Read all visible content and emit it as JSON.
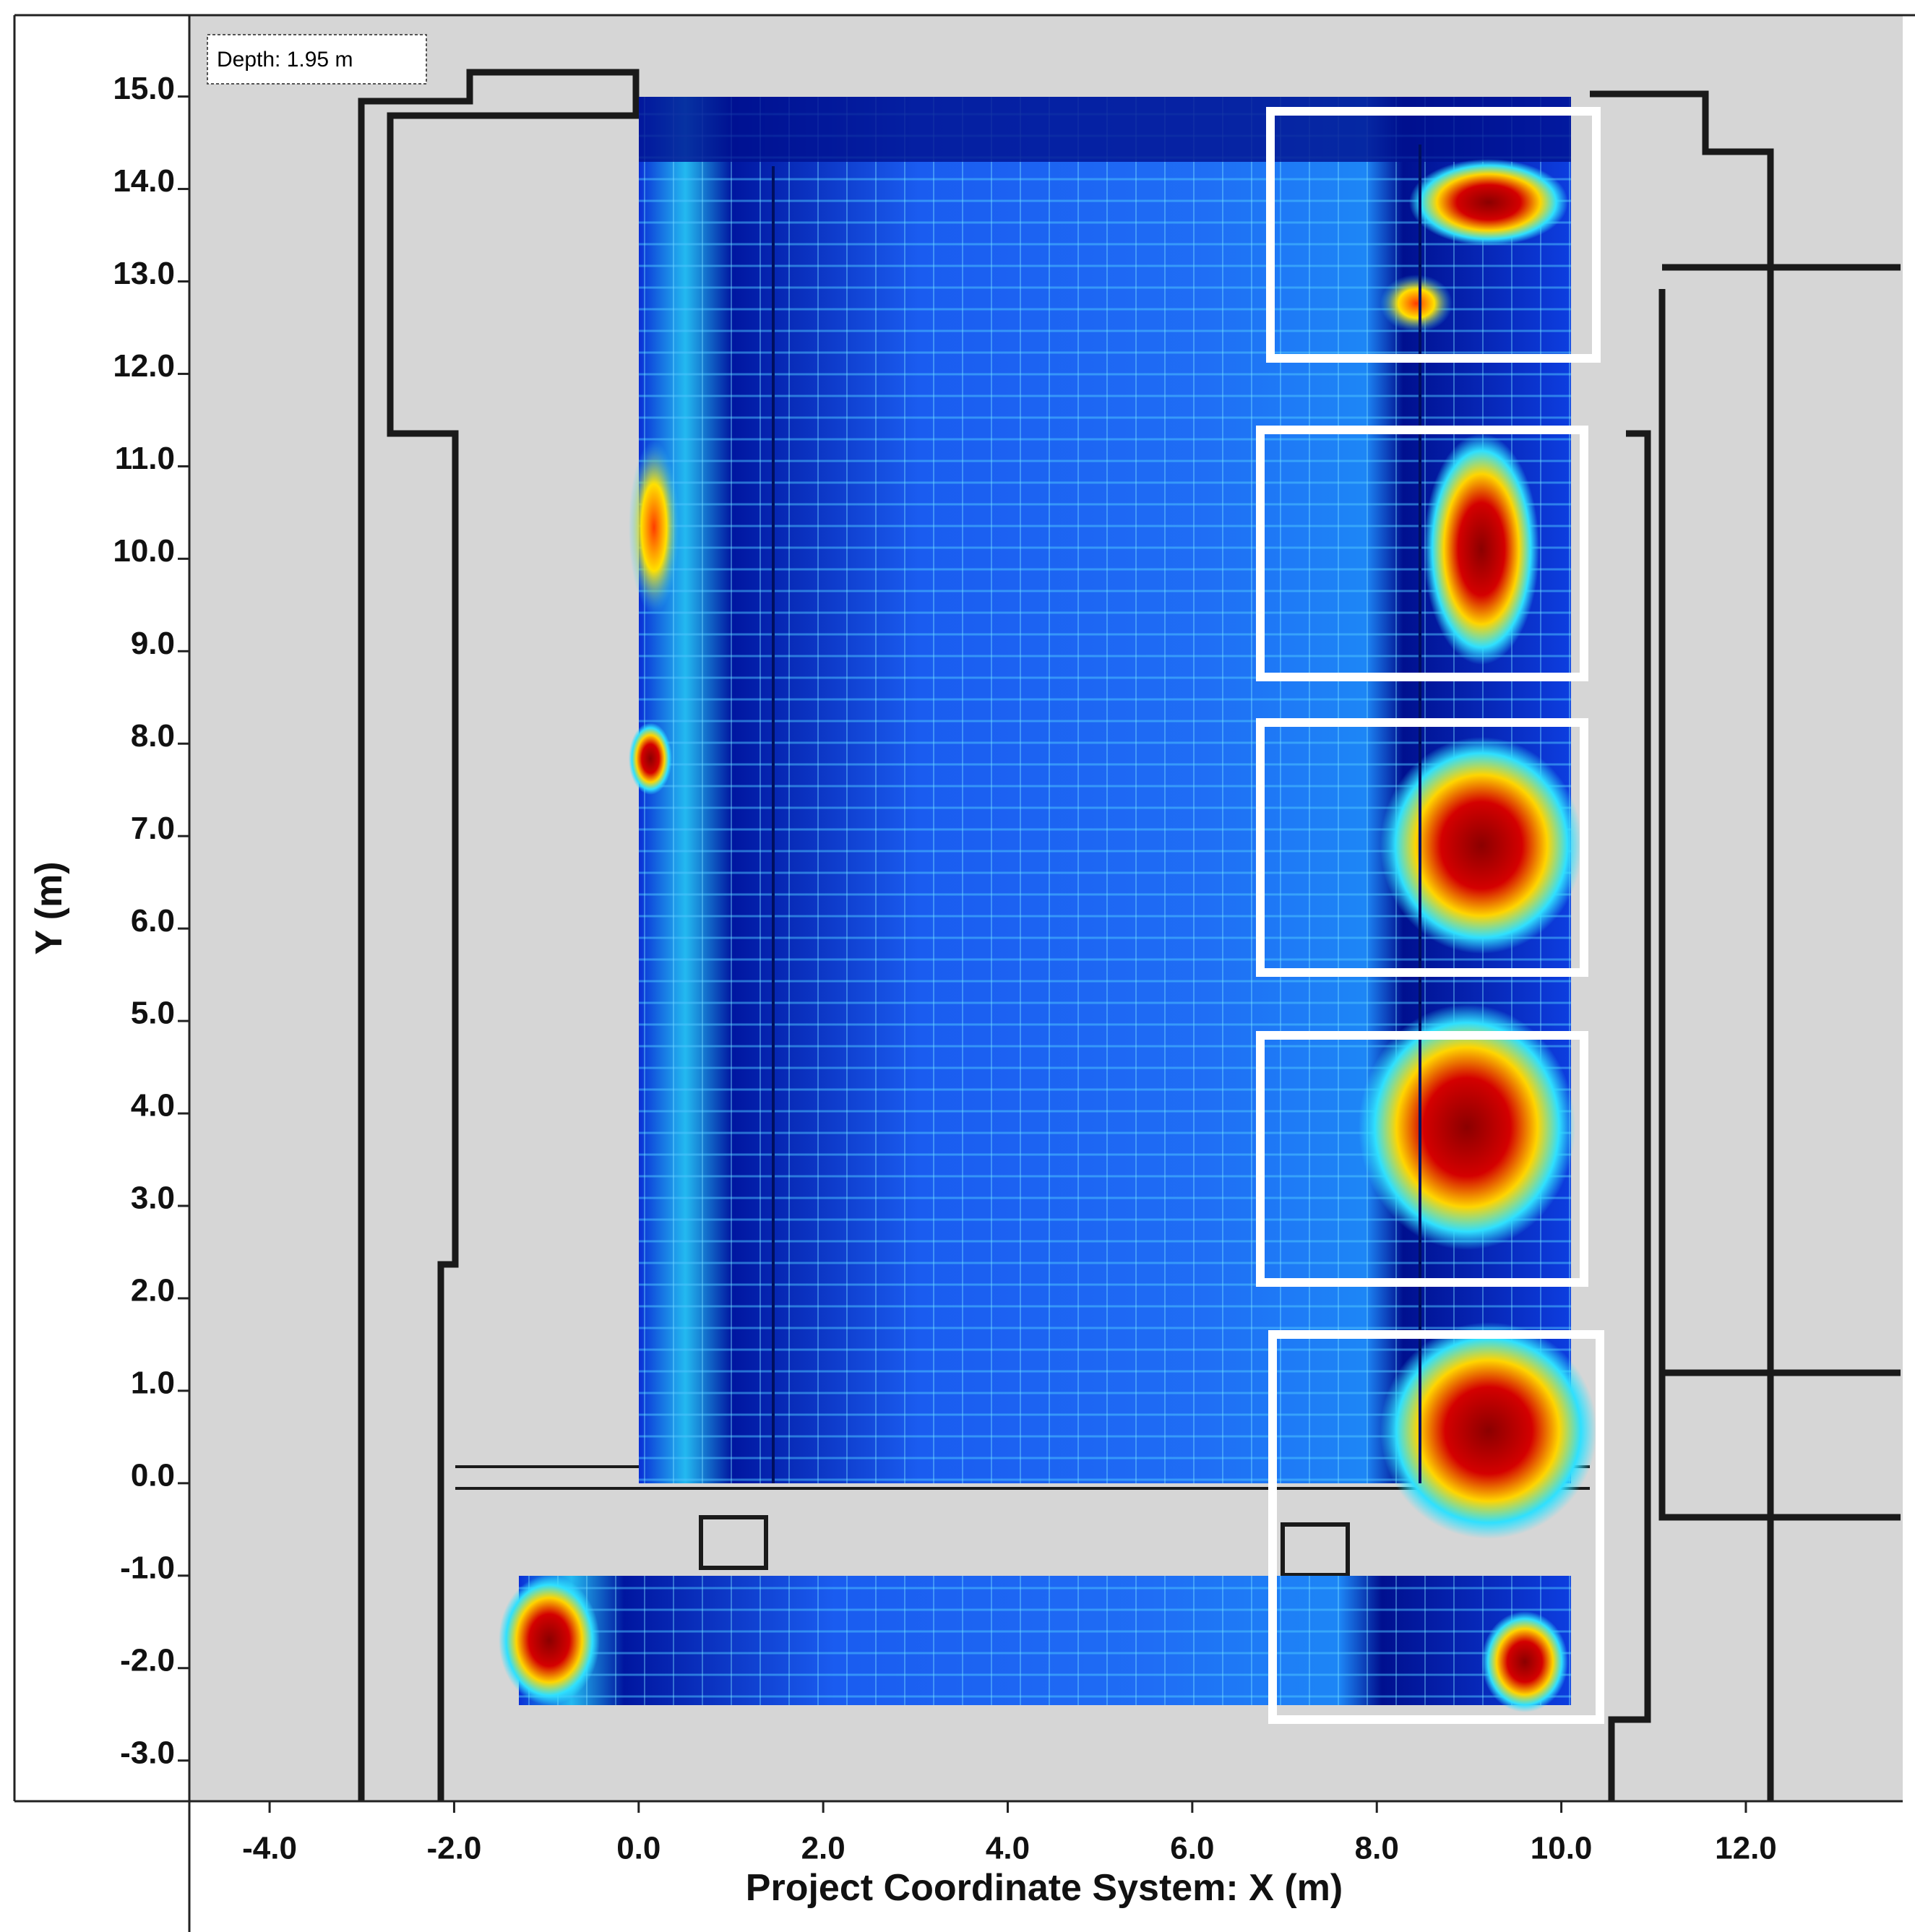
{
  "chart_data": {
    "type": "heatmap",
    "annotation": "Depth: 1.95 m",
    "x_label": "Project Coordinate System: X (m)",
    "y_label": "Y (m)",
    "xlim": [
      -4.87,
      13.7
    ],
    "ylim": [
      -3.44,
      15.88
    ],
    "xticks": [
      {
        "value": -4,
        "label": "-4.0"
      },
      {
        "value": -2,
        "label": "-2.0"
      },
      {
        "value": 0,
        "label": "0.0"
      },
      {
        "value": 2,
        "label": "2.0"
      },
      {
        "value": 4,
        "label": "4.0"
      },
      {
        "value": 6,
        "label": "6.0"
      },
      {
        "value": 8,
        "label": "8.0"
      },
      {
        "value": 10,
        "label": "10.0"
      },
      {
        "value": 12,
        "label": "12.0"
      }
    ],
    "yticks": [
      {
        "value": -3,
        "label": "-3.0"
      },
      {
        "value": -2,
        "label": "-2.0"
      },
      {
        "value": -1,
        "label": "-1.0"
      },
      {
        "value": 0,
        "label": "0.0"
      },
      {
        "value": 1,
        "label": "1.0"
      },
      {
        "value": 2,
        "label": "2.0"
      },
      {
        "value": 3,
        "label": "3.0"
      },
      {
        "value": 4,
        "label": "4.0"
      },
      {
        "value": 5,
        "label": "5.0"
      },
      {
        "value": 6,
        "label": "6.0"
      },
      {
        "value": 7,
        "label": "7.0"
      },
      {
        "value": 8,
        "label": "8.0"
      },
      {
        "value": 9,
        "label": "9.0"
      },
      {
        "value": 10,
        "label": "10.0"
      },
      {
        "value": 11,
        "label": "11.0"
      },
      {
        "value": 12,
        "label": "12.0"
      },
      {
        "value": 13,
        "label": "13.0"
      },
      {
        "value": 14,
        "label": "14.0"
      },
      {
        "value": 15,
        "label": "15.0"
      }
    ]
  }
}
